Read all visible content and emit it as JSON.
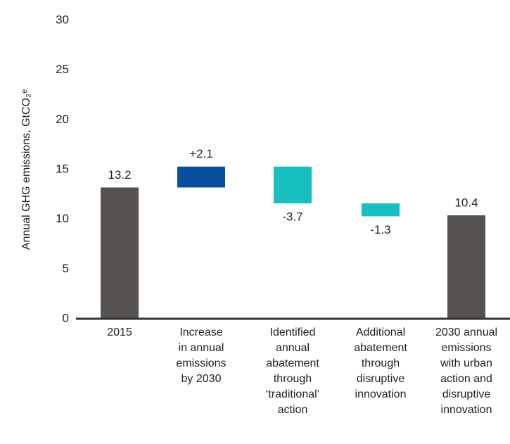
{
  "chart_data": {
    "type": "waterfall",
    "y_label": "Annual GHG emissions, GtCO₂ᵉ",
    "categories": [
      "2015",
      "Increase\nin annual\nemissions\nby 2030",
      "Identified\nannual\nabatement\nthrough\n‘traditional’\naction",
      "Additional\nabatement\nthrough\ndisruptive\ninnovation",
      "2030 annual\nemissions\nwith urban\naction and\ndisruptive\ninnovation"
    ],
    "values": [
      13.2,
      2.1,
      -3.7,
      -1.3,
      10.4
    ],
    "value_labels": [
      "13.2",
      "+2.1",
      "-3.7",
      "-1.3",
      "10.4"
    ],
    "measure": [
      "total",
      "relative",
      "relative",
      "relative",
      "total"
    ],
    "colors": [
      "#555250",
      "#0a4f9e",
      "#17bfbf",
      "#17bfbf",
      "#555250"
    ],
    "ylim": [
      0,
      30
    ],
    "yticks": [
      0,
      5,
      10,
      15,
      20,
      25,
      30
    ],
    "grid": false
  }
}
